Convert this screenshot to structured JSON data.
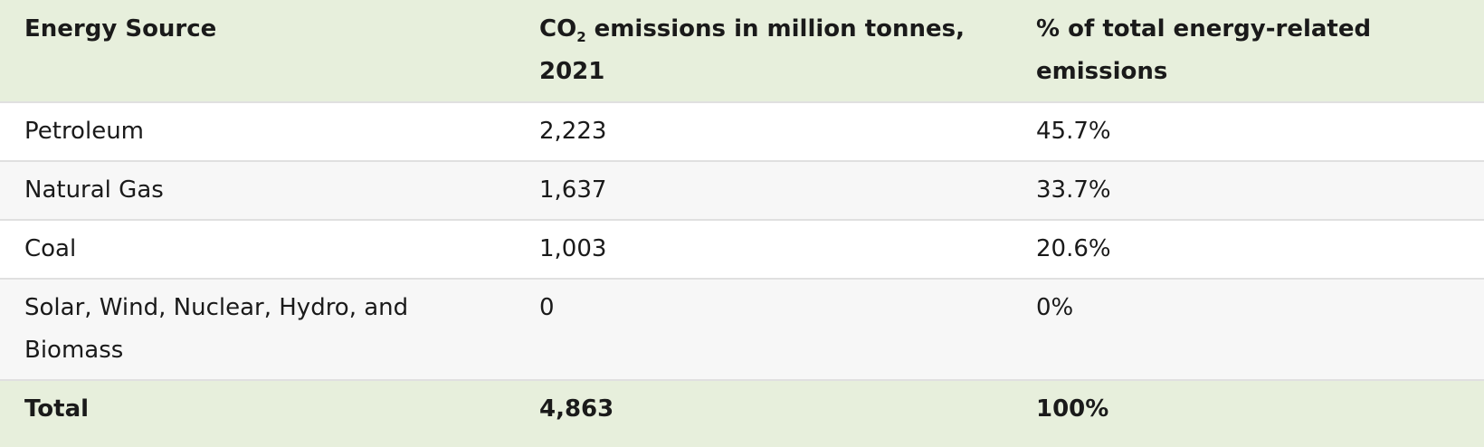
{
  "table": {
    "header": {
      "energy_source": "Energy Source",
      "co2": {
        "prefix": "CO",
        "subscript": "2",
        "rest_lines": [
          " emissions in million tonnes,",
          "2021"
        ]
      },
      "percent_lines": [
        "% of total energy-related",
        "emissions"
      ]
    },
    "rows": [
      {
        "source": "Petroleum",
        "emissions": "2,223",
        "percent": "45.7%"
      },
      {
        "source": "Natural Gas",
        "emissions": "1,637",
        "percent": "33.7%"
      },
      {
        "source": "Coal",
        "emissions": "1,003",
        "percent": "20.6%"
      },
      {
        "source_lines": [
          "Solar, Wind, Nuclear, Hydro, and",
          "Biomass"
        ],
        "emissions": "0",
        "percent": "0%"
      }
    ],
    "total": {
      "label": "Total",
      "emissions": "4,863",
      "percent": "100%"
    }
  },
  "colors": {
    "header_background": "#e7efdc",
    "total_background": "#e7efdc",
    "stripe_background": "#f7f7f7",
    "row_background": "#ffffff",
    "row_border": "#e0e0e0",
    "text": "#1a1a1a"
  },
  "chart_data": {
    "type": "table",
    "columns": [
      "Energy Source",
      "CO2 emissions in million tonnes, 2021",
      "% of total energy-related emissions"
    ],
    "rows": [
      {
        "energy_source": "Petroleum",
        "co2_million_tonnes_2021": 2223,
        "percent_of_total": 45.7
      },
      {
        "energy_source": "Natural Gas",
        "co2_million_tonnes_2021": 1637,
        "percent_of_total": 33.7
      },
      {
        "energy_source": "Coal",
        "co2_million_tonnes_2021": 1003,
        "percent_of_total": 20.6
      },
      {
        "energy_source": "Solar, Wind, Nuclear, Hydro, and Biomass",
        "co2_million_tonnes_2021": 0,
        "percent_of_total": 0
      },
      {
        "energy_source": "Total",
        "co2_million_tonnes_2021": 4863,
        "percent_of_total": 100
      }
    ]
  }
}
